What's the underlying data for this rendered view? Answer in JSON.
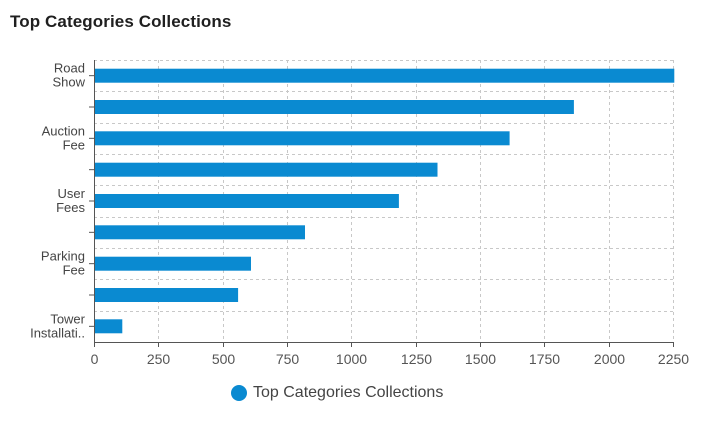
{
  "title": "Top Categories Collections",
  "colors": {
    "bar": "#0a8ad1",
    "grid": "#c8c8c8",
    "axis": "#555555"
  },
  "legend": {
    "label": "Top Categories Collections",
    "icon": "circle-swatch"
  },
  "chart_data": {
    "type": "bar",
    "orientation": "horizontal",
    "title": "Top Categories Collections",
    "categories": [
      [
        "Road",
        "Show"
      ],
      [],
      [
        "Auction",
        "Fee"
      ],
      [],
      [
        "User",
        "Fees"
      ],
      [],
      [
        "Parking",
        "Fee"
      ],
      [],
      [
        "Tower",
        "Installati.."
      ]
    ],
    "series": [
      {
        "name": "Top Categories Collections",
        "values": [
          2255,
          1865,
          1615,
          1335,
          1185,
          820,
          610,
          560,
          110
        ]
      }
    ],
    "xlim": [
      0,
      2250
    ],
    "xticks": [
      0,
      250,
      500,
      750,
      1000,
      1250,
      1500,
      1750,
      2000,
      2250
    ],
    "grid": true,
    "legend_position": "bottom"
  }
}
